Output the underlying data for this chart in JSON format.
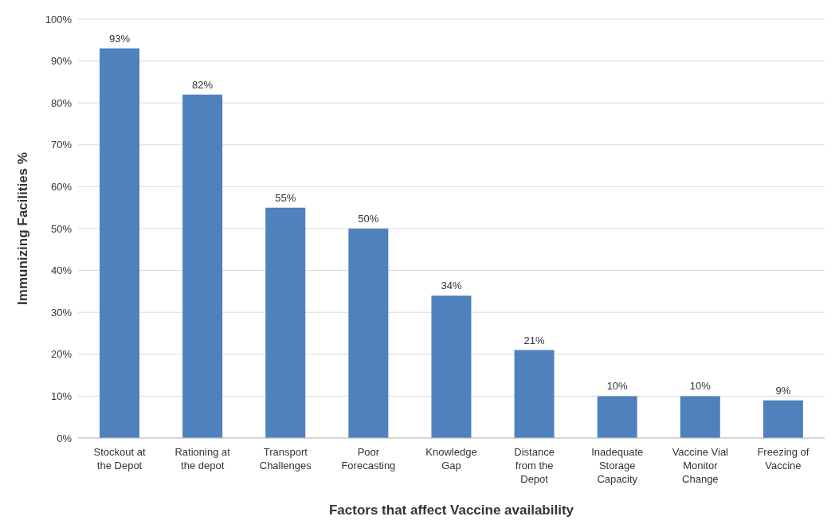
{
  "chart_data": {
    "type": "bar",
    "xlabel": "Factors that affect Vaccine availability",
    "ylabel": "Immunizing Facilities %",
    "categories": [
      "Stockout at the Depot",
      "Rationing at the depot",
      "Transport Challenges",
      "Poor Forecasting",
      "Knowledge Gap",
      "Distance from the Depot",
      "Inadequate Storage Capacity",
      "Vaccine Vial Monitor Change",
      "Freezing of Vaccine"
    ],
    "values": [
      93,
      82,
      55,
      50,
      34,
      21,
      10,
      10,
      9
    ],
    "value_labels": [
      "93%",
      "82%",
      "55%",
      "50%",
      "34%",
      "21%",
      "10%",
      "10%",
      "9%"
    ],
    "color": "#4f81bd",
    "ylim": [
      0,
      100
    ],
    "yticks": [
      {
        "value": 0,
        "label": "0%"
      },
      {
        "value": 10,
        "label": "10%"
      },
      {
        "value": 20,
        "label": "20%"
      },
      {
        "value": 30,
        "label": "30%"
      },
      {
        "value": 40,
        "label": "40%"
      },
      {
        "value": 50,
        "label": "50%"
      },
      {
        "value": 60,
        "label": "60%"
      },
      {
        "value": 70,
        "label": "70%"
      },
      {
        "value": 80,
        "label": "80%"
      },
      {
        "value": 90,
        "label": "90%"
      },
      {
        "value": 100,
        "label": "100%"
      }
    ],
    "grid": "y"
  }
}
